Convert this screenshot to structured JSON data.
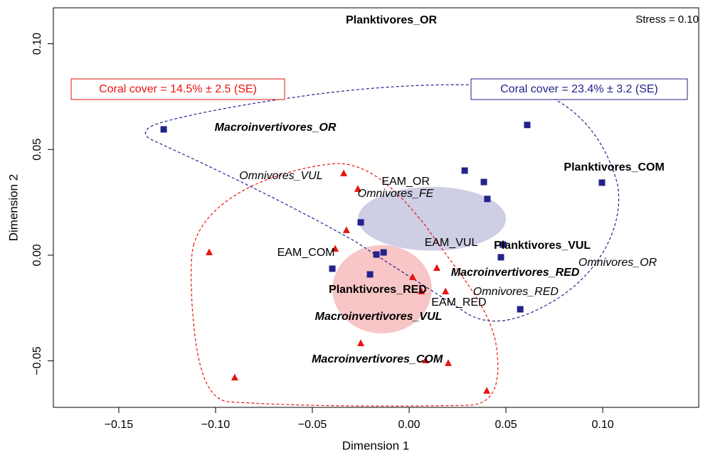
{
  "chart_data": {
    "type": "scatter",
    "xlabel": "Dimension 1",
    "ylabel": "Dimension 2",
    "stress": "Stress = 0.10",
    "group_notes": [
      {
        "text": "Coral cover = 14.5% ± 2.5 (SE)",
        "color": "#e8140e"
      },
      {
        "text": "Coral cover = 23.4% ± 3.2 (SE)",
        "color": "#22228a"
      }
    ],
    "xlim": [
      -0.1838,
      0.1496
    ],
    "ylim": [
      -0.072,
      0.117
    ],
    "xticks": [
      {
        "value": -0.15,
        "label": "−0.15"
      },
      {
        "value": -0.1,
        "label": "−0.10"
      },
      {
        "value": -0.05,
        "label": "−0.05"
      },
      {
        "value": 0,
        "label": "0.00"
      },
      {
        "value": 0.05,
        "label": "0.05"
      },
      {
        "value": 0.1,
        "label": "0.10"
      }
    ],
    "yticks": [
      {
        "value": -0.05,
        "label": "−0.05"
      },
      {
        "value": 0,
        "label": "0.00"
      },
      {
        "value": 0.05,
        "label": "0.05"
      },
      {
        "value": 0.1,
        "label": "0.10"
      }
    ],
    "series": [
      {
        "color": "#22228a",
        "marker": "square",
        "x": [
          -0.1268,
          0.061,
          0.0287,
          0.0386,
          0.0404,
          0.0996,
          -0.025,
          -0.0132,
          -0.0169,
          0.0485,
          0.0474,
          -0.0397,
          -0.0202,
          0.0574
        ],
        "values": [
          0.0595,
          0.0616,
          0.04,
          0.0346,
          0.0266,
          0.0343,
          0.0155,
          0.0013,
          0.0003,
          0.005,
          -0.001,
          -0.0064,
          -0.0091,
          -0.0256
        ]
      },
      {
        "color": "#e8140e",
        "marker": "triangle",
        "x": [
          -0.0338,
          -0.0265,
          -0.0324,
          -0.1033,
          -0.0382,
          0.0018,
          0.0143,
          0.0063,
          0.0188,
          -0.025,
          0.0085,
          0.0202,
          -0.0901,
          0.0401
        ],
        "values": [
          0.0387,
          0.0313,
          0.0118,
          0.0013,
          0.003,
          -0.0104,
          -0.0061,
          -0.0172,
          -0.0172,
          -0.0417,
          -0.0498,
          -0.0511,
          -0.0579,
          -0.0642
        ]
      }
    ],
    "ellipses": [
      {
        "cx": 0.0118,
        "cy": 0.0172,
        "rx": 0.0382,
        "ry": 0.0151,
        "color": "#c9c9e2"
      },
      {
        "cx": -0.014,
        "cy": -0.0161,
        "rx": 0.0257,
        "ry": 0.0209,
        "color": "#f7c0c0"
      }
    ],
    "annotations": [
      {
        "text": "Planktivores_OR",
        "x": -0.0092,
        "y": 0.1111,
        "style": "bold"
      },
      {
        "text": "Macroinvertivores_OR",
        "x": -0.0691,
        "y": 0.0602,
        "style": "bold-italic"
      },
      {
        "text": "Omnivores_VUL",
        "x": -0.0662,
        "y": 0.0373,
        "style": "italic"
      },
      {
        "text": "EAM_OR",
        "x": -0.0018,
        "y": 0.0346,
        "style": "normal"
      },
      {
        "text": "Omnivores_FE",
        "x": -0.007,
        "y": 0.0289,
        "style": "italic"
      },
      {
        "text": "Planktivores_COM",
        "x": 0.1059,
        "y": 0.0414,
        "style": "bold"
      },
      {
        "text": "EAM_VUL",
        "x": 0.0217,
        "y": 0.0057,
        "style": "normal"
      },
      {
        "text": "Planktivores_VUL",
        "x": 0.0688,
        "y": 0.0044,
        "style": "bold"
      },
      {
        "text": "EAM_COM",
        "x": -0.0533,
        "y": 0.001,
        "style": "normal"
      },
      {
        "text": "Omnivores_OR",
        "x": 0.1077,
        "y": -0.0037,
        "style": "italic"
      },
      {
        "text": "Macroinvertivores_RED",
        "x": 0.0548,
        "y": -0.0084,
        "style": "bold-italic"
      },
      {
        "text": "Planktivores_RED",
        "x": -0.0162,
        "y": -0.0165,
        "style": "bold"
      },
      {
        "text": "Omnivores_RED",
        "x": 0.0551,
        "y": -0.0175,
        "style": "italic"
      },
      {
        "text": "EAM_RED",
        "x": 0.0257,
        "y": -0.0225,
        "style": "normal"
      },
      {
        "text": "Macroinvertivores_VUL",
        "x": -0.0158,
        "y": -0.0293,
        "style": "bold-italic"
      },
      {
        "text": "Macroinvertivores_COM",
        "x": -0.0165,
        "y": -0.0494,
        "style": "bold-italic"
      }
    ]
  }
}
